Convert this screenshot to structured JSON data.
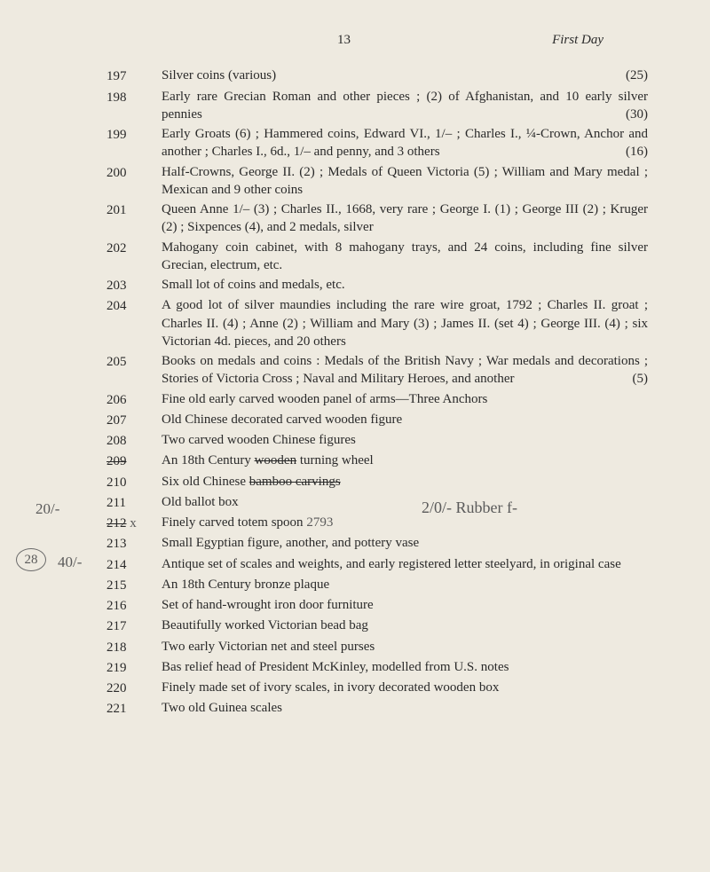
{
  "page": {
    "number": "13",
    "title": "First Day"
  },
  "lots": [
    {
      "num": "197",
      "desc": "Silver coins (various)",
      "tail": "(25)"
    },
    {
      "num": "198",
      "desc": "Early rare Grecian Roman and other pieces ; (2) of Afghanistan, and 10 early silver pennies",
      "tail": "(30)",
      "indent": true
    },
    {
      "num": "199",
      "desc": "Early Groats (6) ; Hammered coins, Edward VI., 1/– ; Charles I., ¼-Crown, Anchor and another ; Charles I., 6d., 1/– and penny, and 3 others",
      "tail": "(16)",
      "indent": true
    },
    {
      "num": "200",
      "desc": "Half-Crowns, George II. (2) ; Medals of Queen Victoria (5) ; William and Mary medal ; Mexican and 9 other coins",
      "indent": true
    },
    {
      "num": "201",
      "desc": "Queen Anne 1/– (3) ; Charles II., 1668, very rare ; George I. (1) ; George III (2) ; Kruger (2) ; Sixpences (4), and 2 medals, silver",
      "indent": true
    },
    {
      "num": "202",
      "desc": "Mahogany coin cabinet, with 8 mahogany trays, and 24 coins, including fine silver Grecian, electrum, etc.",
      "indent": true
    },
    {
      "num": "203",
      "desc": "Small lot of coins and medals, etc."
    },
    {
      "num": "204",
      "desc": "A good lot of silver maundies including the rare wire groat, 1792 ; Charles II. groat ; Charles II. (4) ; Anne (2) ; William and Mary (3) ; James II. (set 4) ; George III. (4) ; six Victorian 4d. pieces, and 20 others",
      "indent": true
    },
    {
      "num": "205",
      "desc": "Books on medals and coins : Medals of the British Navy ; War medals and decorations ; Stories of Victoria Cross ; Naval and Military Heroes, and another",
      "tail": "(5)",
      "indent": true
    },
    {
      "num": "206",
      "desc": "Fine old early carved wooden panel of arms—Three Anchors",
      "indent": true
    },
    {
      "num": "207",
      "desc": "Old Chinese decorated carved wooden figure"
    },
    {
      "num": "208",
      "desc": "Two carved wooden Chinese figures"
    },
    {
      "num": "209",
      "desc": "An 18th Century wooden turning wheel",
      "strike_num": true,
      "strike_words": "wooden"
    },
    {
      "num": "210",
      "desc_plain_pre": "Six old Chinese ",
      "strike_words": "bamboo carvings"
    },
    {
      "num": "211",
      "desc": "Old ballot box"
    },
    {
      "num": "212",
      "desc": "Finely carved totem spoon",
      "strike_num": true,
      "hand_after": " 2793",
      "x_mark": true
    },
    {
      "num": "213",
      "desc": "Small Egyptian figure, another, and pottery vase"
    },
    {
      "num": "214",
      "desc": "Antique set of scales and weights, and early registered letter steelyard, in original case",
      "indent": true
    },
    {
      "num": "215",
      "desc": "An 18th Century bronze plaque"
    },
    {
      "num": "216",
      "desc": "Set of hand-wrought iron door furniture"
    },
    {
      "num": "217",
      "desc": "Beautifully worked Victorian bead bag"
    },
    {
      "num": "218",
      "desc": "Two early Victorian net and steel purses"
    },
    {
      "num": "219",
      "desc": "Bas relief head of President McKinley, modelled from U.S. notes",
      "indent": true
    },
    {
      "num": "220",
      "desc": "Finely made set of ivory scales, in ivory decorated wooden box",
      "indent": true
    },
    {
      "num": "221",
      "desc": "Two old Guinea scales"
    }
  ],
  "annotations": {
    "a209": "20/-",
    "a209b": "2/0/-  Rubber f-",
    "a212": "40/-",
    "a212circle": "28"
  }
}
